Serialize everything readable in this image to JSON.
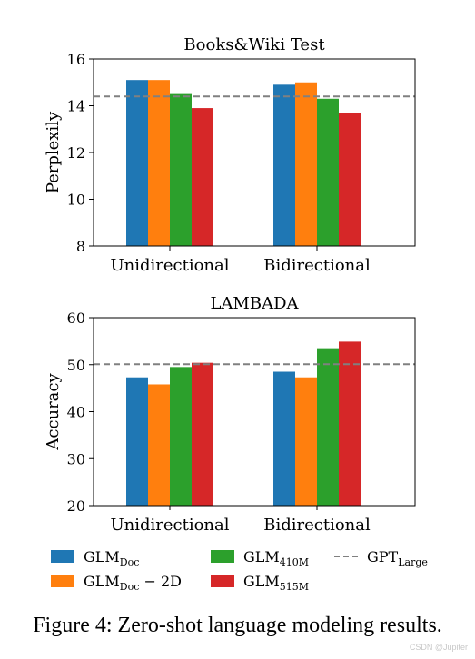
{
  "caption": "Figure 4: Zero-shot language modeling results.",
  "watermark": "CSDN @Jupiter",
  "colors": {
    "GLM_Doc": "#1f77b4",
    "GLM_Doc_2D": "#ff7f0e",
    "GLM_410M": "#2ca02c",
    "GLM_515M": "#d62728",
    "GPT_Large": "#808080"
  },
  "legend": {
    "placement": "bottom",
    "entries": [
      {
        "key": "GLM_Doc",
        "base": "GLM",
        "sub": "Doc",
        "suffix": "",
        "kind": "bar"
      },
      {
        "key": "GLM_Doc_2D",
        "base": "GLM",
        "sub": "Doc",
        "suffix": " − 2D",
        "kind": "bar"
      },
      {
        "key": "GLM_410M",
        "base": "GLM",
        "sub": "410M",
        "suffix": "",
        "kind": "bar"
      },
      {
        "key": "GLM_515M",
        "base": "GLM",
        "sub": "515M",
        "suffix": "",
        "kind": "bar"
      },
      {
        "key": "GPT_Large",
        "base": "GPT",
        "sub": "Large",
        "suffix": "",
        "kind": "dashed-line"
      }
    ]
  },
  "chart_data": [
    {
      "type": "bar",
      "title": "Books&Wiki Test",
      "xlabel": "",
      "ylabel": "Perplexily",
      "categories": [
        "Unidirectional",
        "Bidirectional"
      ],
      "ylim": [
        8,
        16
      ],
      "yticks": [
        8,
        10,
        12,
        14,
        16
      ],
      "grid": false,
      "series": [
        {
          "key": "GLM_Doc",
          "values": [
            15.1,
            14.9
          ]
        },
        {
          "key": "GLM_Doc_2D",
          "values": [
            15.1,
            15.0
          ]
        },
        {
          "key": "GLM_410M",
          "values": [
            14.5,
            14.3
          ]
        },
        {
          "key": "GLM_515M",
          "values": [
            13.9,
            13.7
          ]
        }
      ],
      "reference_line": {
        "key": "GPT_Large",
        "value": 14.4
      }
    },
    {
      "type": "bar",
      "title": "LAMBADA",
      "xlabel": "",
      "ylabel": "Accuracy",
      "categories": [
        "Unidirectional",
        "Bidirectional"
      ],
      "ylim": [
        20,
        60
      ],
      "yticks": [
        20,
        30,
        40,
        50,
        60
      ],
      "grid": false,
      "series": [
        {
          "key": "GLM_Doc",
          "values": [
            47.3,
            48.5
          ]
        },
        {
          "key": "GLM_Doc_2D",
          "values": [
            45.8,
            47.3
          ]
        },
        {
          "key": "GLM_410M",
          "values": [
            49.5,
            53.5
          ]
        },
        {
          "key": "GLM_515M",
          "values": [
            50.4,
            54.9
          ]
        }
      ],
      "reference_line": {
        "key": "GPT_Large",
        "value": 50.1
      }
    }
  ]
}
